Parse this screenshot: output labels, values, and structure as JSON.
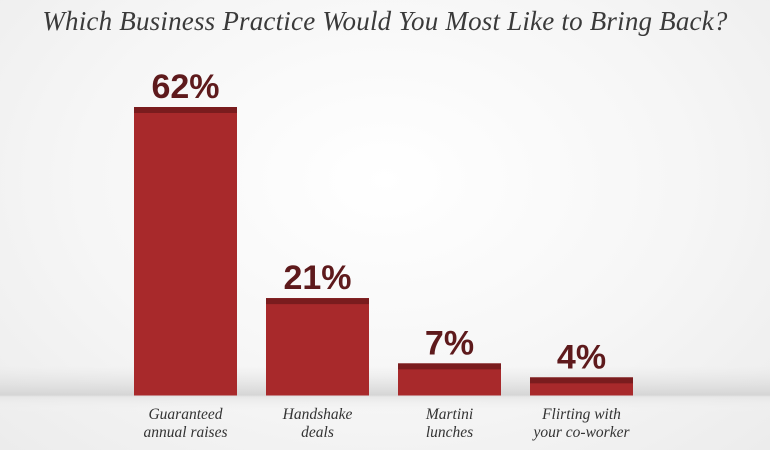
{
  "chart_data": {
    "type": "bar",
    "title": "Which Business Practice Would You Most Like to Bring Back?",
    "categories": [
      [
        "Guaranteed",
        "annual raises"
      ],
      [
        "Handshake",
        "deals"
      ],
      [
        "Martini",
        "lunches"
      ],
      [
        "Flirting with",
        "your co-worker"
      ]
    ],
    "values": [
      62,
      21,
      7,
      4
    ],
    "value_labels": [
      "62%",
      "21%",
      "7%",
      "4%"
    ],
    "ylim": [
      0,
      62
    ],
    "grid": false,
    "legend": "none",
    "colors": {
      "bar": "#a8292b",
      "bar_cap": "#7a1c1e",
      "value_text": "#5e1a1c",
      "baseline_shadow": "#dcdcdc"
    }
  }
}
